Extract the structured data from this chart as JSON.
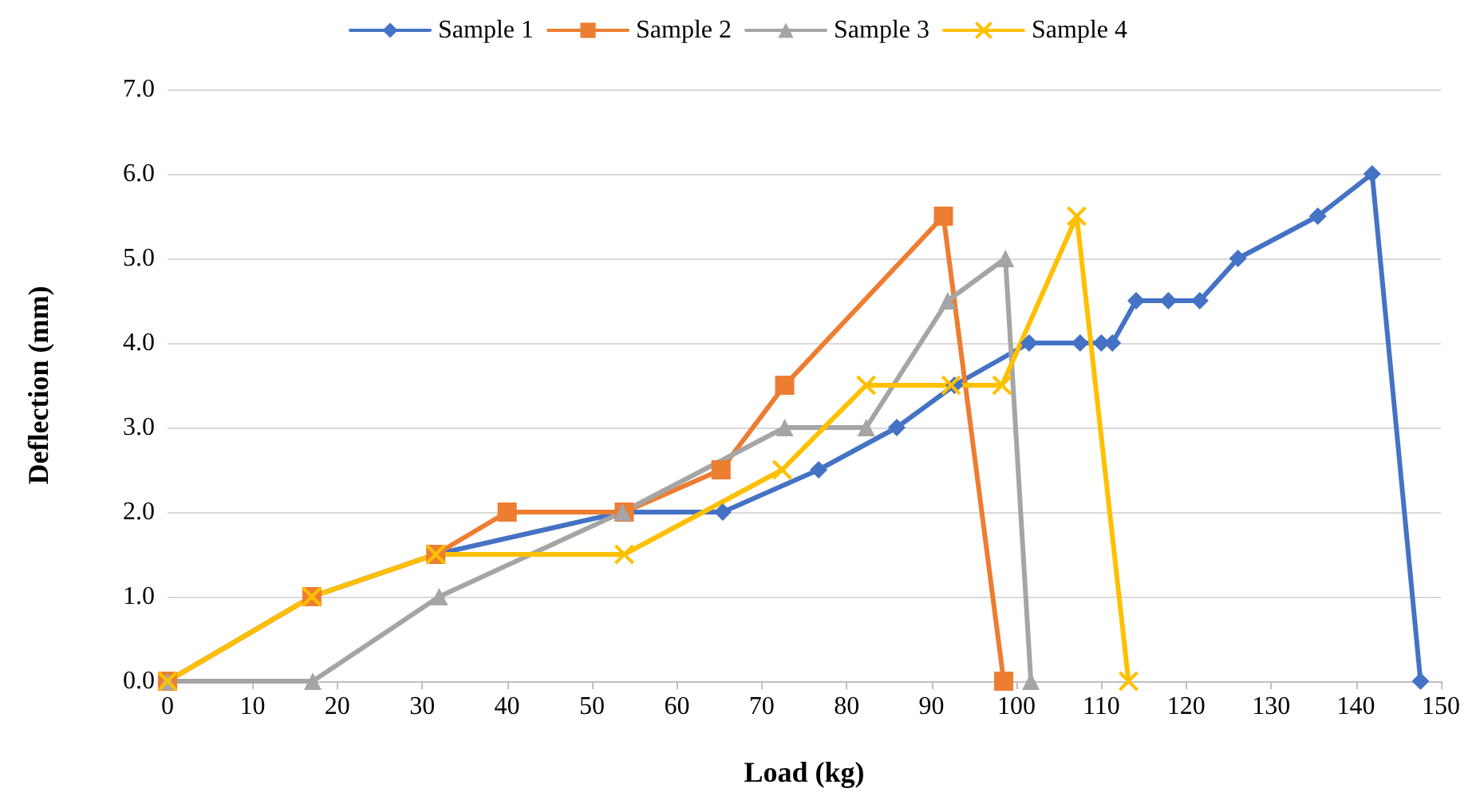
{
  "chart_data": {
    "type": "line",
    "xlabel": "Load (kg)",
    "ylabel": "Deflection (mm)",
    "xlim": [
      0,
      150
    ],
    "xticks": [
      0,
      10,
      20,
      30,
      40,
      50,
      60,
      70,
      80,
      90,
      100,
      110,
      120,
      130,
      140,
      150
    ],
    "ylim": [
      0,
      7
    ],
    "yticks": [
      {
        "value": 0,
        "label": "0.0"
      },
      {
        "value": 1,
        "label": "1.0"
      },
      {
        "value": 2,
        "label": "2.0"
      },
      {
        "value": 3,
        "label": "3.0"
      },
      {
        "value": 4,
        "label": "4.0"
      },
      {
        "value": 5,
        "label": "5.0"
      },
      {
        "value": 6,
        "label": "6.0"
      },
      {
        "value": 7,
        "label": "7.0"
      }
    ],
    "grid": "y",
    "legend": "top",
    "line_style": "solid",
    "series": [
      {
        "name": "Sample 1",
        "color": "#4472c4",
        "marker": "diamond",
        "x": [
          0,
          17,
          31.6,
          53.6,
          65.4,
          76.7,
          85.9,
          92.7,
          101.5,
          107.5,
          110,
          111.3,
          114.1,
          117.9,
          121.6,
          126.1,
          135.5,
          141.9,
          147.6
        ],
        "values": [
          0,
          1,
          1.5,
          2,
          2,
          2.5,
          3,
          3.5,
          4,
          4,
          4,
          4,
          4.5,
          4.5,
          4.5,
          5,
          5.5,
          6,
          0
        ]
      },
      {
        "name": "Sample 2",
        "color": "#ed7d31",
        "marker": "square",
        "x": [
          0,
          17,
          31.6,
          40,
          53.8,
          65.2,
          72.7,
          91.4,
          98.5
        ],
        "values": [
          0,
          1,
          1.5,
          2,
          2,
          2.5,
          3.5,
          5.5,
          0
        ]
      },
      {
        "name": "Sample 3",
        "color": "#a5a5a5",
        "marker": "triangle",
        "x": [
          0,
          17.1,
          32,
          53.6,
          72.7,
          82.3,
          91.9,
          98.7,
          101.7
        ],
        "values": [
          0,
          0,
          1,
          2,
          3,
          3,
          4.5,
          5,
          0
        ]
      },
      {
        "name": "Sample 4",
        "color": "#ffc000",
        "marker": "cross",
        "x": [
          0,
          17,
          31.6,
          53.8,
          72.4,
          82.3,
          92.3,
          98.3,
          107.1,
          113.2
        ],
        "values": [
          0,
          1,
          1.5,
          1.5,
          2.5,
          3.5,
          3.5,
          3.5,
          5.5,
          0
        ]
      }
    ]
  }
}
